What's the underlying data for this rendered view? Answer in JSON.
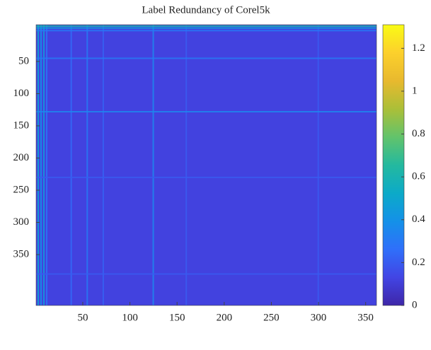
{
  "chart_data": {
    "type": "heatmap",
    "title": "Label Redundancy of Corel5k",
    "xlim": [
      0.5,
      361.5
    ],
    "ylim": [
      -7,
      429
    ],
    "xticks": [
      50,
      100,
      150,
      200,
      250,
      300,
      350
    ],
    "yticks": [
      50,
      100,
      150,
      200,
      250,
      300,
      350
    ],
    "clim": [
      0,
      1.31
    ],
    "cticks": [
      0,
      0.2,
      0.4,
      0.6,
      0.8,
      1,
      1.2
    ],
    "colormap": [
      "#3e26a8",
      "#4245e4",
      "#2f6ffa",
      "#1491e8",
      "#0caac8",
      "#24b99f",
      "#62c36b",
      "#abbf38",
      "#e8b92e",
      "#fcd02c",
      "#f9fb15"
    ],
    "base_value": 0.12,
    "col_streaks": [
      {
        "index": 3,
        "value": 0.5
      },
      {
        "index": 6,
        "value": 0.4
      },
      {
        "index": 9,
        "value": 0.45
      },
      {
        "index": 12,
        "value": 0.3
      },
      {
        "index": 38,
        "value": 0.25
      },
      {
        "index": 55,
        "value": 0.3
      },
      {
        "index": 72,
        "value": 0.22
      },
      {
        "index": 125,
        "value": 0.35
      },
      {
        "index": 160,
        "value": 0.2
      },
      {
        "index": 300,
        "value": 0.2
      }
    ],
    "row_streaks": [
      {
        "index": -5,
        "value": 0.6
      },
      {
        "index": -2,
        "value": 0.45
      },
      {
        "index": 2,
        "value": 0.3
      },
      {
        "index": 45,
        "value": 0.3
      },
      {
        "index": 128,
        "value": 0.35
      },
      {
        "index": 230,
        "value": 0.2
      },
      {
        "index": 380,
        "value": 0.2
      }
    ]
  }
}
